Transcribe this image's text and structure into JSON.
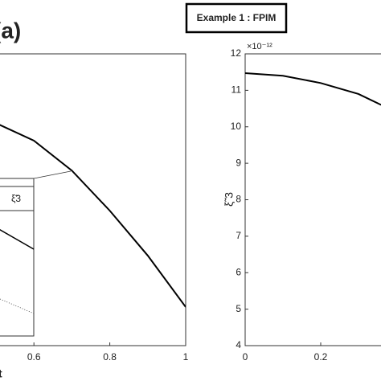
{
  "chart_data": [
    {
      "type": "line",
      "panel_label": "(a)",
      "x_label": "t",
      "legend_label": "ξ̃3",
      "x": [
        0.5,
        0.6,
        0.7,
        0.8,
        0.9,
        1
      ],
      "series": [
        {
          "name": "ξ̃3",
          "color": "#000000",
          "values": [
            10.1,
            9.62,
            8.8,
            7.7,
            6.47,
            5.06
          ]
        }
      ],
      "xlim": [
        0.5,
        1
      ],
      "ylim": [
        4,
        12
      ],
      "xticks": [
        0.6,
        0.8,
        1
      ]
    },
    {
      "type": "line",
      "title": "Example 1 : FPIM",
      "y_label": "ξ̃ 3",
      "y_exponent": "×10⁻¹²",
      "x": [
        0,
        0.1,
        0.2,
        0.3,
        0.36
      ],
      "series": [
        {
          "name": "ξ̃3",
          "color": "#000000",
          "values": [
            11.47,
            11.4,
            11.2,
            10.9,
            10.6
          ]
        }
      ],
      "xlim": [
        0,
        0.4
      ],
      "ylim": [
        4,
        12
      ],
      "xticks": [
        0,
        0.2
      ],
      "yticks": [
        4,
        5,
        6,
        7,
        8,
        9,
        10,
        11,
        12
      ]
    }
  ]
}
